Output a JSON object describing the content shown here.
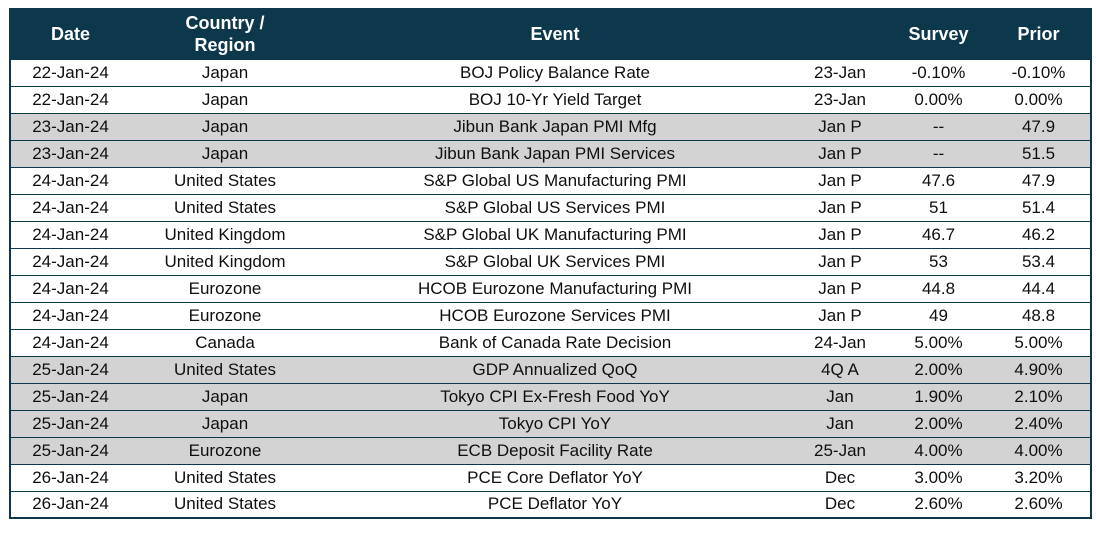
{
  "colors": {
    "header_bg": "#0d384c",
    "header_text": "#ffffff",
    "border": "#0d384c",
    "row_bg": "#ffffff",
    "row_shaded_bg": "#d3d3d3",
    "body_text": "#0f0f0f"
  },
  "chart_data": {
    "type": "table",
    "title": "Economic calendar: events, survey and prior values",
    "columns": {
      "date": "Date",
      "region": "Country /\nRegion",
      "event": "Event",
      "period": "",
      "survey": "Survey",
      "prior": "Prior"
    },
    "rows": [
      {
        "date": "22-Jan-24",
        "region": "Japan",
        "event": "BOJ Policy Balance Rate",
        "period": "23-Jan",
        "survey": "-0.10%",
        "prior": "-0.10%",
        "shaded": false
      },
      {
        "date": "22-Jan-24",
        "region": "Japan",
        "event": "BOJ 10-Yr Yield Target",
        "period": "23-Jan",
        "survey": "0.00%",
        "prior": "0.00%",
        "shaded": false
      },
      {
        "date": "23-Jan-24",
        "region": "Japan",
        "event": "Jibun Bank Japan PMI Mfg",
        "period": "Jan P",
        "survey": "--",
        "prior": "47.9",
        "shaded": true
      },
      {
        "date": "23-Jan-24",
        "region": "Japan",
        "event": "Jibun Bank Japan PMI Services",
        "period": "Jan P",
        "survey": "--",
        "prior": "51.5",
        "shaded": true
      },
      {
        "date": "24-Jan-24",
        "region": "United States",
        "event": "S&P Global US Manufacturing PMI",
        "period": "Jan P",
        "survey": "47.6",
        "prior": "47.9",
        "shaded": false
      },
      {
        "date": "24-Jan-24",
        "region": "United States",
        "event": "S&P Global US Services PMI",
        "period": "Jan P",
        "survey": "51",
        "prior": "51.4",
        "shaded": false
      },
      {
        "date": "24-Jan-24",
        "region": "United Kingdom",
        "event": "S&P Global UK Manufacturing PMI",
        "period": "Jan P",
        "survey": "46.7",
        "prior": "46.2",
        "shaded": false
      },
      {
        "date": "24-Jan-24",
        "region": "United Kingdom",
        "event": "S&P Global UK Services PMI",
        "period": "Jan P",
        "survey": "53",
        "prior": "53.4",
        "shaded": false
      },
      {
        "date": "24-Jan-24",
        "region": "Eurozone",
        "event": "HCOB Eurozone Manufacturing PMI",
        "period": "Jan P",
        "survey": "44.8",
        "prior": "44.4",
        "shaded": false
      },
      {
        "date": "24-Jan-24",
        "region": "Eurozone",
        "event": "HCOB Eurozone Services PMI",
        "period": "Jan P",
        "survey": "49",
        "prior": "48.8",
        "shaded": false
      },
      {
        "date": "24-Jan-24",
        "region": "Canada",
        "event": "Bank of Canada Rate Decision",
        "period": "24-Jan",
        "survey": "5.00%",
        "prior": "5.00%",
        "shaded": false
      },
      {
        "date": "25-Jan-24",
        "region": "United States",
        "event": "GDP Annualized QoQ",
        "period": "4Q A",
        "survey": "2.00%",
        "prior": "4.90%",
        "shaded": true
      },
      {
        "date": "25-Jan-24",
        "region": "Japan",
        "event": "Tokyo CPI Ex-Fresh Food YoY",
        "period": "Jan",
        "survey": "1.90%",
        "prior": "2.10%",
        "shaded": true
      },
      {
        "date": "25-Jan-24",
        "region": "Japan",
        "event": "Tokyo CPI YoY",
        "period": "Jan",
        "survey": "2.00%",
        "prior": "2.40%",
        "shaded": true
      },
      {
        "date": "25-Jan-24",
        "region": "Eurozone",
        "event": "ECB Deposit Facility Rate",
        "period": "25-Jan",
        "survey": "4.00%",
        "prior": "4.00%",
        "shaded": true
      },
      {
        "date": "26-Jan-24",
        "region": "United States",
        "event": "PCE Core Deflator YoY",
        "period": "Dec",
        "survey": "3.00%",
        "prior": "3.20%",
        "shaded": false
      },
      {
        "date": "26-Jan-24",
        "region": "United States",
        "event": "PCE Deflator YoY",
        "period": "Dec",
        "survey": "2.60%",
        "prior": "2.60%",
        "shaded": false
      }
    ]
  }
}
